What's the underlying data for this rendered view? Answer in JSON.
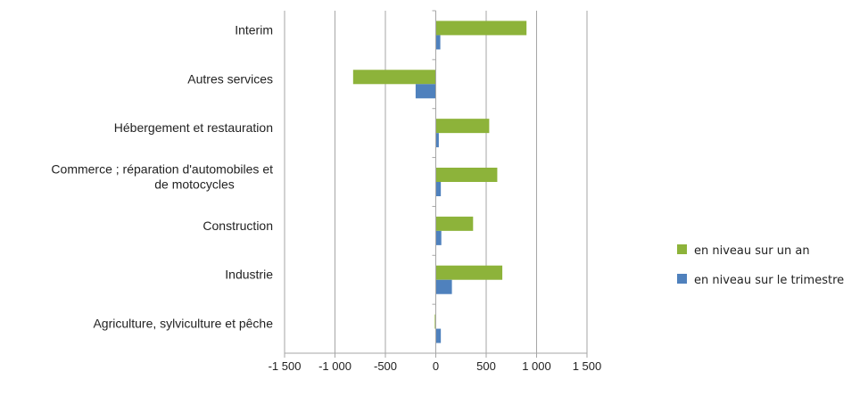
{
  "chart_data": {
    "type": "bar",
    "orientation": "horizontal",
    "categories": [
      "Interim",
      "Autres services",
      "Hébergement et restauration",
      "Commerce ; réparation d'automobiles et de motocycles",
      "Construction",
      "Industrie",
      "Agriculture, sylviculture et pêche"
    ],
    "category_lines": [
      [
        "Interim"
      ],
      [
        "Autres services"
      ],
      [
        "Hébergement et restauration"
      ],
      [
        "Commerce ; réparation d'automobiles et",
        "de motocycles"
      ],
      [
        "Construction"
      ],
      [
        "Industrie"
      ],
      [
        "Agriculture, sylviculture et pêche"
      ]
    ],
    "series": [
      {
        "name": "en niveau sur un an",
        "color": "#8db33a",
        "values": [
          900,
          -820,
          530,
          610,
          370,
          660,
          -10
        ]
      },
      {
        "name": "en niveau sur le trimestre",
        "color": "#4f81bd",
        "values": [
          45,
          -200,
          30,
          50,
          55,
          160,
          50
        ]
      }
    ],
    "xlim": [
      -1500,
      1500
    ],
    "xticks": [
      -1500,
      -1000,
      -500,
      0,
      500,
      1000,
      1500
    ],
    "xtick_labels": [
      "-1 500",
      "-1 000",
      "-500",
      "0",
      "500",
      "1 000",
      "1 500"
    ],
    "grid": true,
    "legend_position": "right",
    "title": "",
    "xlabel": "",
    "ylabel": ""
  }
}
